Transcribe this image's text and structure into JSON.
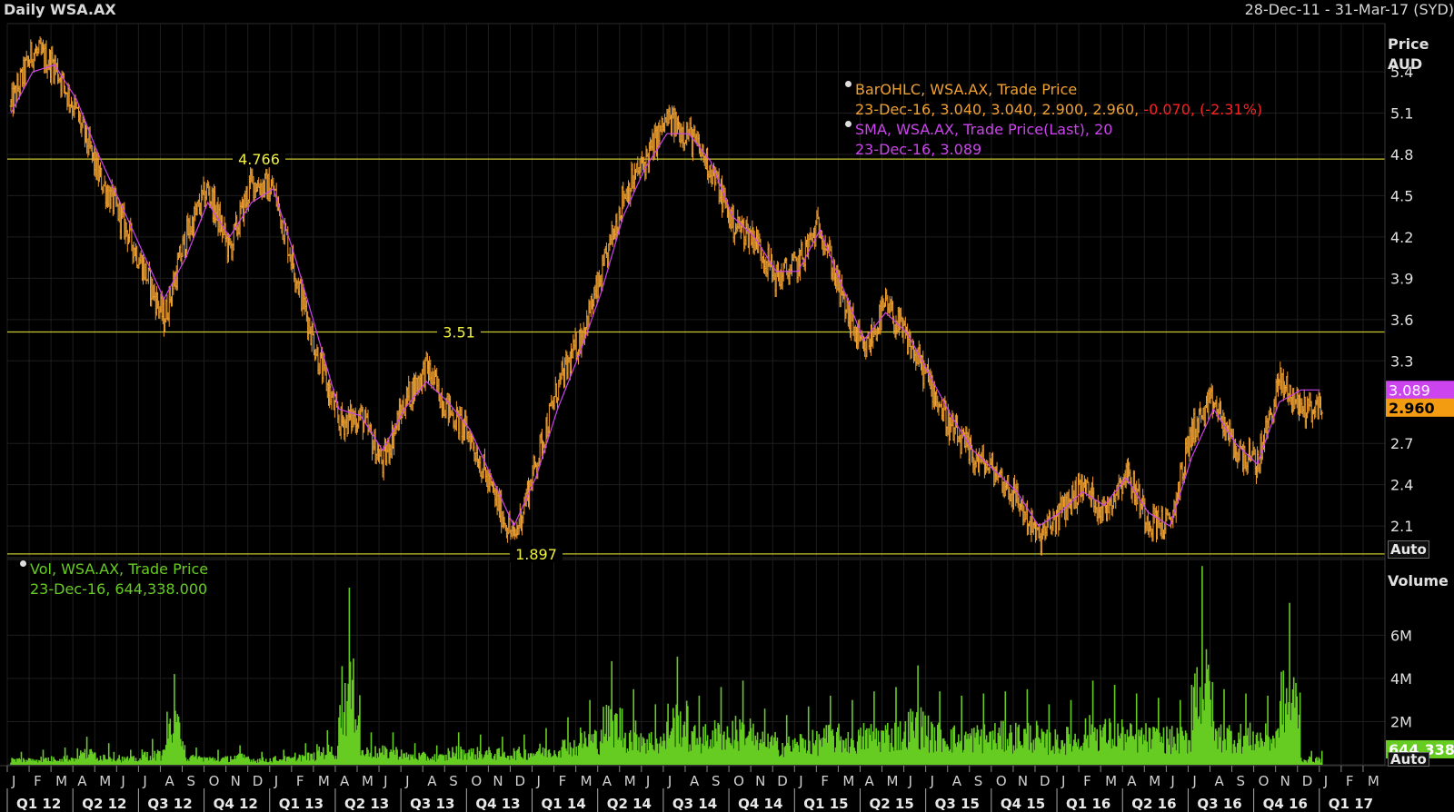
{
  "header": {
    "title": "Daily WSA.AX",
    "date_range": "28-Dec-11 - 31-Mar-17 (SYD)"
  },
  "legend_price": {
    "line1": "BarOHLC, WSA.AX, Trade Price",
    "line2_values": "23-Dec-16, 3.040, 3.040, 2.900, 2.960,",
    "line2_change": " -0.070, (-2.31%)",
    "line3": "SMA, WSA.AX, Trade Price(Last),  20",
    "line4": "23-Dec-16, 3.089"
  },
  "legend_volume": {
    "line1": "Vol, WSA.AX, Trade Price",
    "line2": "23-Dec-16, 644,338.000"
  },
  "axis": {
    "price_title_1": "Price",
    "price_title_2": "AUD",
    "volume_title": "Volume",
    "auto_label": "Auto",
    "auto_label_volume": "Auto"
  },
  "colors": {
    "background": "#000000",
    "grid": "#1e1e1e",
    "price_bars": "#f0a030",
    "sma": "#cc44ee",
    "level_lines": "#c8c832",
    "volume": "#66cc22",
    "change_negative": "#ff2020"
  },
  "chart_data": [
    {
      "type": "line",
      "title": "Daily WSA.AX",
      "ylabel": "Price AUD",
      "ylim": [
        1.87,
        5.75
      ],
      "y_ticks": [
        5.4,
        5.1,
        4.8,
        4.5,
        4.2,
        3.9,
        3.6,
        3.3,
        2.7,
        2.4,
        2.1
      ],
      "x_range": [
        "28-Dec-11",
        "31-Mar-17"
      ],
      "grid": true,
      "legend": "top-center",
      "horizontal_levels": [
        {
          "value": 4.766,
          "label": "4.766"
        },
        {
          "value": 3.51,
          "label": "3.51"
        },
        {
          "value": 1.897,
          "label": "1.897"
        }
      ],
      "last_value_tags": {
        "sma": "3.089",
        "close": "2.960"
      },
      "series": [
        {
          "name": "BarOHLC, WSA.AX, Trade Price",
          "style": "ohlc",
          "x": [
            "2012-01",
            "2012-02",
            "2012-03",
            "2012-04",
            "2012-05",
            "2012-06",
            "2012-07",
            "2012-08",
            "2012-09",
            "2012-10",
            "2012-11",
            "2012-12",
            "2013-01",
            "2013-02",
            "2013-03",
            "2013-04",
            "2013-05",
            "2013-06",
            "2013-07",
            "2013-08",
            "2013-09",
            "2013-10",
            "2013-11",
            "2013-12",
            "2014-01",
            "2014-02",
            "2014-03",
            "2014-04",
            "2014-05",
            "2014-06",
            "2014-07",
            "2014-08",
            "2014-09",
            "2014-10",
            "2014-11",
            "2014-12",
            "2015-01",
            "2015-02",
            "2015-03",
            "2015-04",
            "2015-05",
            "2015-06",
            "2015-07",
            "2015-08",
            "2015-09",
            "2015-10",
            "2015-11",
            "2015-12",
            "2016-01",
            "2016-02",
            "2016-03",
            "2016-04",
            "2016-05",
            "2016-06",
            "2016-07",
            "2016-08",
            "2016-09",
            "2016-10",
            "2016-11",
            "2016-12"
          ],
          "values": [
            5.15,
            5.55,
            5.45,
            5.1,
            4.65,
            4.35,
            4.0,
            3.6,
            4.2,
            4.55,
            4.1,
            4.6,
            4.55,
            3.95,
            3.35,
            2.85,
            2.9,
            2.55,
            3.0,
            3.25,
            2.95,
            2.75,
            2.35,
            2.0,
            2.55,
            3.1,
            3.45,
            3.9,
            4.5,
            4.75,
            5.05,
            4.95,
            4.7,
            4.3,
            4.2,
            3.9,
            4.0,
            4.3,
            3.75,
            3.35,
            3.7,
            3.45,
            3.15,
            2.8,
            2.6,
            2.5,
            2.3,
            2.0,
            2.2,
            2.4,
            2.2,
            2.5,
            2.15,
            2.1,
            2.8,
            3.0,
            2.65,
            2.55,
            3.15,
            2.96
          ]
        },
        {
          "name": "SMA, WSA.AX, Trade Price(Last), 20",
          "style": "line",
          "x": [
            "2012-01",
            "2012-02",
            "2012-03",
            "2012-04",
            "2012-05",
            "2012-06",
            "2012-07",
            "2012-08",
            "2012-09",
            "2012-10",
            "2012-11",
            "2012-12",
            "2013-01",
            "2013-02",
            "2013-03",
            "2013-04",
            "2013-05",
            "2013-06",
            "2013-07",
            "2013-08",
            "2013-09",
            "2013-10",
            "2013-11",
            "2013-12",
            "2014-01",
            "2014-02",
            "2014-03",
            "2014-04",
            "2014-05",
            "2014-06",
            "2014-07",
            "2014-08",
            "2014-09",
            "2014-10",
            "2014-11",
            "2014-12",
            "2015-01",
            "2015-02",
            "2015-03",
            "2015-04",
            "2015-05",
            "2015-06",
            "2015-07",
            "2015-08",
            "2015-09",
            "2015-10",
            "2015-11",
            "2015-12",
            "2016-01",
            "2016-02",
            "2016-03",
            "2016-04",
            "2016-05",
            "2016-06",
            "2016-07",
            "2016-08",
            "2016-09",
            "2016-10",
            "2016-11",
            "2016-12"
          ],
          "values": [
            5.1,
            5.4,
            5.45,
            5.2,
            4.8,
            4.45,
            4.1,
            3.75,
            4.05,
            4.45,
            4.2,
            4.45,
            4.55,
            4.05,
            3.5,
            2.95,
            2.9,
            2.65,
            2.95,
            3.15,
            3.0,
            2.8,
            2.45,
            2.1,
            2.45,
            2.95,
            3.35,
            3.8,
            4.35,
            4.7,
            4.95,
            4.95,
            4.75,
            4.35,
            4.2,
            3.95,
            3.95,
            4.25,
            3.85,
            3.45,
            3.65,
            3.5,
            3.2,
            2.9,
            2.65,
            2.5,
            2.35,
            2.1,
            2.2,
            2.35,
            2.25,
            2.45,
            2.2,
            2.1,
            2.6,
            2.95,
            2.7,
            2.55,
            3.0,
            3.089
          ]
        }
      ]
    },
    {
      "type": "bar",
      "title": "Vol, WSA.AX, Trade Price",
      "ylabel": "Volume",
      "ylim": [
        0,
        9000000
      ],
      "y_ticks": [
        "6M",
        "4M",
        "2M"
      ],
      "y_tick_values": [
        6000000,
        4000000,
        2000000
      ],
      "last_value_tag": "644,338",
      "series": [
        {
          "name": "Vol, WSA.AX, Trade Price",
          "x": [
            "2012-01",
            "2012-02",
            "2012-03",
            "2012-04",
            "2012-05",
            "2012-06",
            "2012-07",
            "2012-08",
            "2012-09",
            "2012-10",
            "2012-11",
            "2012-12",
            "2013-01",
            "2013-02",
            "2013-03",
            "2013-04",
            "2013-05",
            "2013-06",
            "2013-07",
            "2013-08",
            "2013-09",
            "2013-10",
            "2013-11",
            "2013-12",
            "2014-01",
            "2014-02",
            "2014-03",
            "2014-04",
            "2014-05",
            "2014-06",
            "2014-07",
            "2014-08",
            "2014-09",
            "2014-10",
            "2014-11",
            "2014-12",
            "2015-01",
            "2015-02",
            "2015-03",
            "2015-04",
            "2015-05",
            "2015-06",
            "2015-07",
            "2015-08",
            "2015-09",
            "2015-10",
            "2015-11",
            "2015-12",
            "2016-01",
            "2016-02",
            "2016-03",
            "2016-04",
            "2016-05",
            "2016-06",
            "2016-07",
            "2016-08",
            "2016-09",
            "2016-10",
            "2016-11",
            "2016-12"
          ],
          "values": [
            600000,
            700000,
            800000,
            1300000,
            1000000,
            700000,
            1200000,
            4200000,
            800000,
            700000,
            900000,
            600000,
            700000,
            1000000,
            1600000,
            8200000,
            1500000,
            1500000,
            1000000,
            900000,
            1500000,
            1400000,
            1300000,
            1400000,
            1700000,
            2200000,
            3000000,
            4800000,
            3500000,
            2800000,
            5000000,
            3200000,
            3600000,
            3900000,
            2600000,
            2300000,
            2700000,
            3200000,
            3000000,
            3400000,
            3600000,
            4600000,
            3400000,
            3200000,
            3300000,
            3400000,
            3500000,
            2800000,
            3000000,
            3900000,
            3700000,
            3300000,
            3100000,
            3000000,
            9200000,
            3500000,
            3300000,
            3200000,
            7500000,
            644338
          ]
        }
      ],
      "legend": "top-left"
    }
  ],
  "x_axis": {
    "months": [
      "J",
      "F",
      "M",
      "A",
      "M",
      "J",
      "J",
      "A",
      "S",
      "O",
      "N",
      "D",
      "J",
      "F",
      "M",
      "A",
      "M",
      "J",
      "J",
      "A",
      "S",
      "O",
      "N",
      "D",
      "J",
      "F",
      "M",
      "A",
      "M",
      "J",
      "J",
      "A",
      "S",
      "O",
      "N",
      "D",
      "J",
      "F",
      "M",
      "A",
      "M",
      "J",
      "J",
      "A",
      "S",
      "O",
      "N",
      "D",
      "J",
      "F",
      "M",
      "A",
      "M",
      "J",
      "J",
      "A",
      "S",
      "O",
      "N",
      "D",
      "J",
      "F",
      "M"
    ],
    "quarters": [
      "Q1 12",
      "Q2 12",
      "Q3 12",
      "Q4 12",
      "Q1 13",
      "Q2 13",
      "Q3 13",
      "Q4 13",
      "Q1 14",
      "Q2 14",
      "Q3 14",
      "Q4 14",
      "Q1 15",
      "Q2 15",
      "Q3 15",
      "Q4 15",
      "Q1 16",
      "Q2 16",
      "Q3 16",
      "Q4 16",
      "Q1 17"
    ]
  }
}
